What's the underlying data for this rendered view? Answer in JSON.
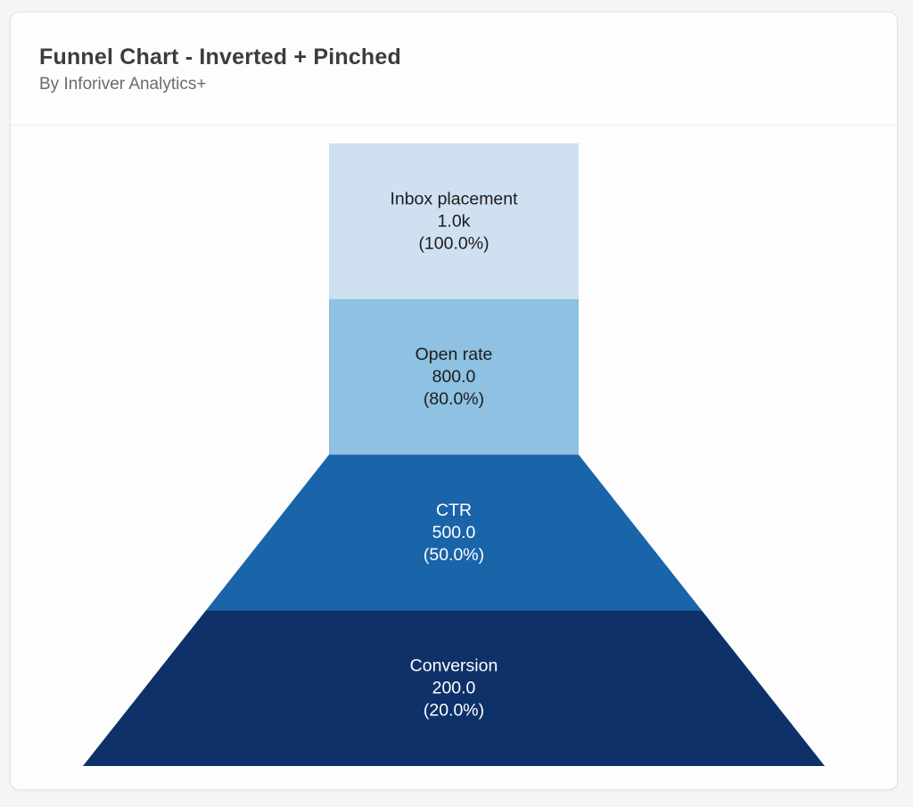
{
  "page": {
    "background": "#f5f5f6"
  },
  "card": {
    "background": "#fdfdfd",
    "border_color": "#e2e2e6"
  },
  "header": {
    "title": "Funnel Chart - Inverted + Pinched",
    "subtitle": "By Inforiver Analytics+"
  },
  "chart_data": {
    "type": "funnel",
    "variant": "inverted + pinched",
    "title": "Funnel Chart - Inverted + Pinched",
    "attribution": "By Inforiver Analytics+",
    "orientation": "top-to-bottom, neck on top two stages then flaring outward",
    "stages": [
      {
        "label": "Inbox placement",
        "value": 1000,
        "value_label": "1.0k",
        "percent": 100.0,
        "percent_label": "(100.0%)",
        "color": "#cfe0f1",
        "text_color": "#1c1c1c",
        "shape": "rectangle"
      },
      {
        "label": "Open rate",
        "value": 800,
        "value_label": "800.0",
        "percent": 80.0,
        "percent_label": "(80.0%)",
        "color": "#8ec1e2",
        "text_color": "#1c1c1c",
        "shape": "rectangle"
      },
      {
        "label": "CTR",
        "value": 500,
        "value_label": "500.0",
        "percent": 50.0,
        "percent_label": "(50.0%)",
        "color": "#1a64aa",
        "text_color": "#ffffff",
        "shape": "trapezoid-expanding"
      },
      {
        "label": "Conversion",
        "value": 200,
        "value_label": "200.0",
        "percent": 20.0,
        "percent_label": "(20.0%)",
        "color": "#0d3168",
        "text_color": "#ffffff",
        "shape": "trapezoid-expanding"
      }
    ],
    "legend": "none",
    "grid": "off"
  }
}
